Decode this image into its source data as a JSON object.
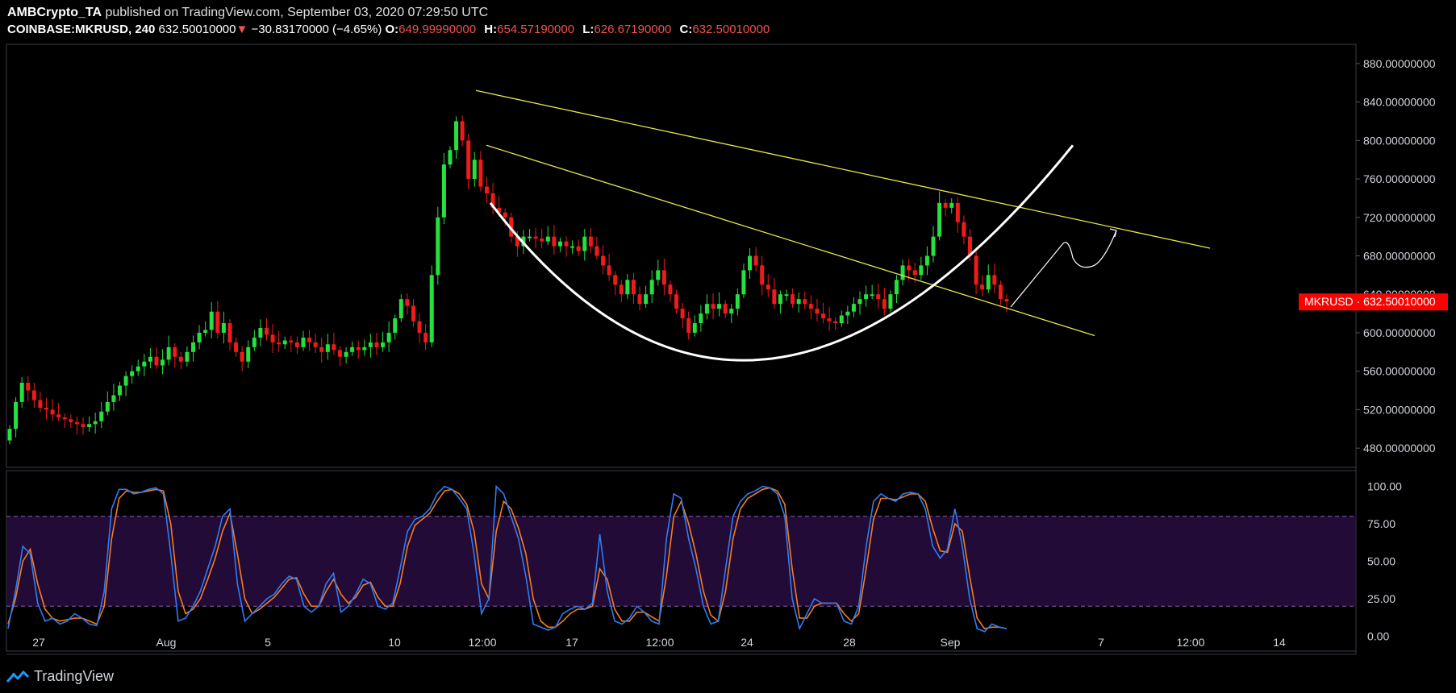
{
  "header": {
    "publisher": "AMBCrypto_TA",
    "published_text": "published on TradingView.com, September 03, 2020 07:29:50 UTC",
    "symbol": "COINBASE:MKRUSD, 240",
    "last": "632.50010000",
    "change_arrow": "▼",
    "change": "−30.83170000 (−4.65%)",
    "o_label": "O:",
    "o_value": "649.99990000",
    "h_label": "H:",
    "h_value": "654.57190000",
    "l_label": "L:",
    "l_value": "626.67190000",
    "c_label": "C:",
    "c_value": "632.50010000"
  },
  "price_tag": "MKRUSD · 632.50010000",
  "footer": {
    "brand": "TradingView"
  },
  "colors": {
    "up": "#26e03f",
    "down": "#ef1b1b",
    "trendline": "#e6e64a",
    "curve": "#ffffff",
    "k_line": "#2f7cf6",
    "d_line": "#f57c1f",
    "band": "#220b36",
    "tag": "#ff0000"
  },
  "chart_data": [
    {
      "type": "candlestick",
      "symbol": "COINBASE:MKRUSD",
      "interval": "240",
      "ylim": [
        460,
        900
      ],
      "y_ticks": [
        "880.00000000",
        "840.00000000",
        "800.00000000",
        "760.00000000",
        "720.00000000",
        "680.00000000",
        "640.00000000",
        "600.00000000",
        "560.00000000",
        "520.00000000",
        "480.00000000"
      ],
      "x_ticks": [
        "27",
        "Aug",
        "5",
        "10",
        "12:00",
        "17",
        "12:00",
        "24",
        "28",
        "Sep",
        "7",
        "12:00",
        "14"
      ],
      "closes": [
        500,
        528,
        548,
        540,
        530,
        522,
        520,
        515,
        512,
        510,
        507,
        505,
        502,
        505,
        508,
        518,
        528,
        535,
        545,
        555,
        560,
        565,
        570,
        575,
        566,
        572,
        585,
        575,
        570,
        580,
        590,
        600,
        603,
        622,
        600,
        610,
        590,
        580,
        570,
        585,
        595,
        605,
        598,
        590,
        588,
        592,
        590,
        585,
        595,
        590,
        585,
        580,
        588,
        582,
        575,
        580,
        585,
        582,
        585,
        590,
        585,
        590,
        600,
        615,
        635,
        628,
        612,
        600,
        590,
        660,
        720,
        775,
        790,
        820,
        800,
        760,
        780,
        752,
        745,
        730,
        725,
        720,
        700,
        690,
        700,
        700,
        698,
        695,
        700,
        690,
        695,
        690,
        690,
        685,
        700,
        690,
        680,
        670,
        660,
        650,
        640,
        655,
        640,
        630,
        640,
        655,
        665,
        650,
        640,
        625,
        615,
        600,
        610,
        620,
        630,
        625,
        630,
        620,
        625,
        640,
        665,
        680,
        670,
        650,
        645,
        630,
        640,
        640,
        630,
        635,
        630,
        625,
        620,
        615,
        612,
        610,
        618,
        622,
        630,
        635,
        640,
        640,
        635,
        625,
        640,
        655,
        670,
        665,
        660,
        670,
        680,
        700,
        735,
        730,
        735,
        715,
        700,
        680,
        650,
        645,
        660,
        650,
        635,
        632.5
      ],
      "pattern_lines": [
        {
          "from": [
            "Aug 11 20:00",
            852
          ],
          "to": [
            "Sep 9",
            688
          ]
        },
        {
          "from": [
            "Aug 12 04:00",
            795
          ],
          "to": [
            "Sep 7",
            597
          ]
        }
      ],
      "cup_curve": {
        "start": 735,
        "bottom": 580,
        "end": 795
      },
      "price_tag": 632.5
    },
    {
      "type": "line",
      "indicator": "Stochastic RSI",
      "ylim": [
        -10,
        110
      ],
      "y_ticks": [
        "100.00",
        "75.00",
        "50.00",
        "25.00",
        "0.00"
      ],
      "band": [
        20,
        80
      ],
      "series": [
        {
          "values": [
            5,
            30,
            60,
            55,
            22,
            10,
            12,
            8,
            10,
            15,
            12,
            8,
            7,
            30,
            85,
            98,
            98,
            95,
            96,
            98,
            99,
            95,
            55,
            10,
            12,
            20,
            30,
            45,
            60,
            80,
            85,
            35,
            10,
            15,
            20,
            25,
            28,
            35,
            40,
            38,
            20,
            16,
            20,
            35,
            42,
            16,
            20,
            28,
            38,
            35,
            20,
            18,
            22,
            45,
            70,
            78,
            80,
            85,
            95,
            100,
            98,
            92,
            85,
            55,
            15,
            25,
            100,
            95,
            80,
            65,
            40,
            8,
            6,
            4,
            6,
            15,
            18,
            20,
            18,
            22,
            68,
            30,
            10,
            8,
            12,
            20,
            16,
            10,
            8,
            65,
            95,
            92,
            65,
            45,
            20,
            8,
            10,
            45,
            80,
            90,
            95,
            97,
            100,
            99,
            95,
            80,
            25,
            5,
            15,
            25,
            22,
            22,
            22,
            10,
            8,
            20,
            60,
            90,
            95,
            92,
            90,
            95,
            96,
            95,
            85,
            60,
            52,
            58,
            85,
            60,
            25,
            5,
            3,
            8,
            6,
            5
          ]
        },
        {
          "values": [
            8,
            25,
            50,
            58,
            35,
            18,
            12,
            10,
            11,
            12,
            12,
            10,
            8,
            20,
            65,
            92,
            97,
            96,
            96,
            97,
            98,
            97,
            75,
            30,
            15,
            18,
            25,
            38,
            52,
            70,
            82,
            55,
            25,
            15,
            18,
            22,
            26,
            32,
            38,
            39,
            28,
            20,
            20,
            30,
            38,
            28,
            22,
            26,
            34,
            36,
            26,
            20,
            20,
            35,
            60,
            74,
            78,
            82,
            90,
            97,
            98,
            95,
            88,
            70,
            35,
            25,
            70,
            90,
            85,
            72,
            55,
            25,
            10,
            6,
            6,
            10,
            15,
            18,
            18,
            20,
            45,
            38,
            18,
            10,
            10,
            16,
            16,
            13,
            10,
            40,
            80,
            90,
            75,
            55,
            30,
            14,
            10,
            30,
            65,
            85,
            92,
            95,
            98,
            99,
            97,
            88,
            45,
            12,
            12,
            20,
            22,
            22,
            22,
            15,
            10,
            15,
            45,
            78,
            92,
            92,
            91,
            93,
            95,
            95,
            90,
            72,
            57,
            56,
            75,
            70,
            40,
            12,
            5,
            6,
            6,
            5
          ]
        }
      ]
    }
  ]
}
